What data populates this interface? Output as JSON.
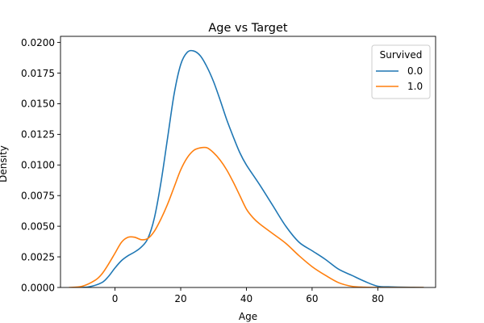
{
  "chart_data": {
    "type": "line",
    "title": "Age vs Target",
    "xlabel": "Age",
    "ylabel": "Density",
    "xlim": [
      -16.6,
      97.6
    ],
    "ylim": [
      0,
      0.0205
    ],
    "xticks": [
      0,
      20,
      40,
      60,
      80
    ],
    "xtick_labels": [
      "0",
      "20",
      "40",
      "60",
      "80"
    ],
    "yticks": [
      0,
      0.0025,
      0.005,
      0.0075,
      0.01,
      0.0125,
      0.015,
      0.0175,
      0.02
    ],
    "ytick_labels": [
      "0.0000",
      "0.0025",
      "0.0050",
      "0.0075",
      "0.0100",
      "0.0125",
      "0.0150",
      "0.0175",
      "0.0200"
    ],
    "grid": false,
    "legend": {
      "title": "Survived",
      "placement": "top-right"
    },
    "series": [
      {
        "name": "0.0",
        "color": "#1f77b4",
        "x": [
          -12,
          -8,
          -4,
          -2,
          0,
          2,
          4,
          6,
          8,
          10,
          12,
          14,
          16,
          18,
          20,
          22,
          24,
          26,
          28,
          30,
          32,
          34,
          36,
          38,
          40,
          44,
          48,
          52,
          56,
          60,
          64,
          68,
          72,
          76,
          80,
          84,
          88,
          94
        ],
        "y": [
          0.0,
          5e-05,
          0.0004,
          0.0009,
          0.0016,
          0.0022,
          0.0026,
          0.0029,
          0.0033,
          0.004,
          0.0057,
          0.0086,
          0.0122,
          0.0158,
          0.0182,
          0.0192,
          0.0193,
          0.0189,
          0.018,
          0.0168,
          0.0153,
          0.0137,
          0.0123,
          0.011,
          0.01,
          0.0084,
          0.0067,
          0.005,
          0.0037,
          0.003,
          0.0023,
          0.0015,
          0.001,
          0.0005,
          0.0001,
          5e-05,
          2e-05,
          0.0
        ]
      },
      {
        "name": "1.0",
        "color": "#ff7f0e",
        "x": [
          -14,
          -10,
          -6,
          -4,
          -2,
          0,
          2,
          4,
          6,
          8,
          10,
          12,
          14,
          16,
          18,
          20,
          22,
          24,
          26,
          28,
          30,
          32,
          34,
          36,
          38,
          40,
          42,
          44,
          48,
          52,
          56,
          60,
          64,
          68,
          72,
          76,
          80,
          86,
          94
        ],
        "y": [
          0.0,
          0.0001,
          0.0006,
          0.0011,
          0.0019,
          0.0028,
          0.0037,
          0.0041,
          0.0041,
          0.0039,
          0.004,
          0.0046,
          0.0056,
          0.0068,
          0.0082,
          0.0096,
          0.0106,
          0.0112,
          0.0114,
          0.0114,
          0.011,
          0.0104,
          0.0096,
          0.0086,
          0.0075,
          0.0064,
          0.0057,
          0.0052,
          0.0044,
          0.0036,
          0.0026,
          0.0017,
          0.001,
          0.0004,
          0.0001,
          2e-05,
          0.0,
          0.0,
          0.0
        ]
      }
    ]
  }
}
